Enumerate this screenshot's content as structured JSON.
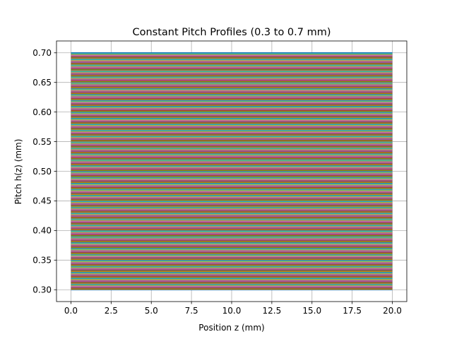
{
  "chart_data": {
    "type": "line",
    "title": "Constant Pitch Profiles (0.3 to 0.7 mm)",
    "xlabel": "Position z (mm)",
    "ylabel": "Pitch h(z) (mm)",
    "xlim": [
      -0.9,
      20.9
    ],
    "ylim": [
      0.28,
      0.72
    ],
    "x_range": [
      0,
      20
    ],
    "pitch_range": [
      0.3,
      0.7
    ],
    "pitch_step": 0.001,
    "xticks": [
      0,
      2.5,
      5,
      7.5,
      10,
      12.5,
      15,
      17.5,
      20
    ],
    "xtick_labels": [
      "0.0",
      "2.5",
      "5.0",
      "7.5",
      "10.0",
      "12.5",
      "15.0",
      "17.5",
      "20.0"
    ],
    "yticks": [
      0.3,
      0.35,
      0.4,
      0.45,
      0.5,
      0.55,
      0.6,
      0.65,
      0.7
    ],
    "ytick_labels": [
      "0.30",
      "0.35",
      "0.40",
      "0.45",
      "0.50",
      "0.55",
      "0.60",
      "0.65",
      "0.70"
    ],
    "grid": true,
    "legend": false,
    "series_colors": [
      "#1f77b4",
      "#ff7f0e",
      "#2ca02c",
      "#d62728",
      "#9467bd",
      "#8c564b",
      "#e377c2",
      "#7f7f7f",
      "#bcbd22",
      "#17becf"
    ]
  }
}
